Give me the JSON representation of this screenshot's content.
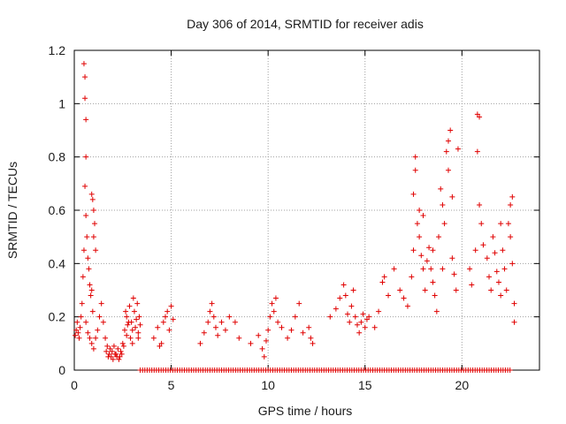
{
  "chart_data": {
    "type": "scatter",
    "title": "Day 306 of 2014, SRMTID for receiver adis",
    "xlabel": "GPS time / hours",
    "ylabel": "SRMTID / TECUs",
    "xlim": [
      0,
      24
    ],
    "ylim": [
      0,
      1.2
    ],
    "x_ticks": [
      0,
      5,
      10,
      15,
      20
    ],
    "x_tick_labels": [
      "0",
      "5",
      "10",
      "15",
      "20"
    ],
    "y_ticks": [
      0,
      0.2,
      0.4,
      0.6,
      0.8,
      1.0,
      1.2
    ],
    "y_tick_labels": [
      "0",
      "0.2",
      "0.4",
      "0.6",
      "0.8",
      "1",
      "1.2"
    ],
    "grid": true,
    "marker": "+",
    "color": "#e00000",
    "series": [
      {
        "name": "SRMTID",
        "points": [
          [
            0.05,
            0.13
          ],
          [
            0.1,
            0.15
          ],
          [
            0.15,
            0.18
          ],
          [
            0.2,
            0.14
          ],
          [
            0.25,
            0.12
          ],
          [
            0.3,
            0.16
          ],
          [
            0.35,
            0.2
          ],
          [
            0.4,
            0.25
          ],
          [
            0.45,
            0.35
          ],
          [
            0.5,
            0.45
          ],
          [
            0.5,
            1.15
          ],
          [
            0.55,
            1.1
          ],
          [
            0.55,
            1.02
          ],
          [
            0.6,
            0.94
          ],
          [
            0.6,
            0.8
          ],
          [
            0.55,
            0.69
          ],
          [
            0.6,
            0.58
          ],
          [
            0.65,
            0.5
          ],
          [
            0.7,
            0.42
          ],
          [
            0.75,
            0.38
          ],
          [
            0.8,
            0.32
          ],
          [
            0.85,
            0.28
          ],
          [
            0.9,
            0.3
          ],
          [
            0.95,
            0.22
          ],
          [
            0.9,
            0.66
          ],
          [
            0.95,
            0.64
          ],
          [
            1.0,
            0.6
          ],
          [
            1.05,
            0.55
          ],
          [
            1.0,
            0.5
          ],
          [
            1.1,
            0.45
          ],
          [
            0.6,
            0.18
          ],
          [
            0.7,
            0.14
          ],
          [
            0.8,
            0.12
          ],
          [
            0.9,
            0.1
          ],
          [
            1.0,
            0.08
          ],
          [
            1.1,
            0.12
          ],
          [
            1.2,
            0.15
          ],
          [
            1.3,
            0.2
          ],
          [
            1.4,
            0.25
          ],
          [
            1.5,
            0.18
          ],
          [
            1.6,
            0.12
          ],
          [
            1.7,
            0.09
          ],
          [
            1.8,
            0.06
          ],
          [
            1.9,
            0.05
          ],
          [
            2.0,
            0.04
          ],
          [
            2.1,
            0.06
          ],
          [
            2.2,
            0.05
          ],
          [
            2.3,
            0.04
          ],
          [
            2.4,
            0.07
          ],
          [
            2.5,
            0.1
          ],
          [
            1.65,
            0.07
          ],
          [
            1.75,
            0.05
          ],
          [
            1.85,
            0.08
          ],
          [
            1.95,
            0.07
          ],
          [
            2.05,
            0.09
          ],
          [
            2.15,
            0.06
          ],
          [
            2.25,
            0.08
          ],
          [
            2.35,
            0.05
          ],
          [
            2.45,
            0.06
          ],
          [
            2.55,
            0.09
          ],
          [
            2.6,
            0.15
          ],
          [
            2.7,
            0.2
          ],
          [
            2.8,
            0.18
          ],
          [
            2.9,
            0.12
          ],
          [
            3.0,
            0.15
          ],
          [
            3.1,
            0.22
          ],
          [
            3.2,
            0.19
          ],
          [
            3.3,
            0.14
          ],
          [
            3.35,
            0.2
          ],
          [
            3.4,
            0.17
          ],
          [
            2.65,
            0.22
          ],
          [
            2.75,
            0.17
          ],
          [
            2.85,
            0.24
          ],
          [
            2.95,
            0.18
          ],
          [
            3.05,
            0.27
          ],
          [
            3.15,
            0.16
          ],
          [
            3.25,
            0.25
          ],
          [
            3.3,
            0.12
          ],
          [
            2.7,
            0.13
          ],
          [
            3.0,
            0.1
          ],
          [
            4.1,
            0.12
          ],
          [
            4.3,
            0.16
          ],
          [
            4.5,
            0.1
          ],
          [
            4.6,
            0.18
          ],
          [
            4.8,
            0.22
          ],
          [
            4.9,
            0.15
          ],
          [
            5.0,
            0.24
          ],
          [
            5.1,
            0.19
          ],
          [
            4.7,
            0.2
          ],
          [
            4.4,
            0.09
          ],
          [
            6.5,
            0.1
          ],
          [
            6.7,
            0.14
          ],
          [
            6.9,
            0.18
          ],
          [
            7.0,
            0.22
          ],
          [
            7.1,
            0.25
          ],
          [
            7.2,
            0.2
          ],
          [
            7.3,
            0.16
          ],
          [
            7.4,
            0.13
          ],
          [
            7.6,
            0.18
          ],
          [
            7.8,
            0.15
          ],
          [
            8.0,
            0.2
          ],
          [
            8.3,
            0.18
          ],
          [
            8.5,
            0.12
          ],
          [
            9.1,
            0.1
          ],
          [
            9.5,
            0.13
          ],
          [
            9.7,
            0.08
          ],
          [
            9.8,
            0.05
          ],
          [
            9.9,
            0.11
          ],
          [
            10.0,
            0.15
          ],
          [
            10.1,
            0.2
          ],
          [
            10.2,
            0.25
          ],
          [
            10.3,
            0.22
          ],
          [
            10.4,
            0.27
          ],
          [
            10.5,
            0.18
          ],
          [
            10.7,
            0.16
          ],
          [
            11.0,
            0.12
          ],
          [
            11.2,
            0.15
          ],
          [
            11.4,
            0.2
          ],
          [
            11.6,
            0.25
          ],
          [
            11.8,
            0.14
          ],
          [
            12.1,
            0.16
          ],
          [
            12.2,
            0.12
          ],
          [
            12.3,
            0.1
          ],
          [
            13.2,
            0.2
          ],
          [
            13.5,
            0.23
          ],
          [
            13.7,
            0.27
          ],
          [
            13.9,
            0.32
          ],
          [
            14.0,
            0.28
          ],
          [
            14.1,
            0.21
          ],
          [
            14.2,
            0.18
          ],
          [
            14.3,
            0.24
          ],
          [
            14.4,
            0.3
          ],
          [
            14.5,
            0.2
          ],
          [
            14.6,
            0.17
          ],
          [
            14.7,
            0.14
          ],
          [
            14.8,
            0.18
          ],
          [
            14.9,
            0.21
          ],
          [
            15.0,
            0.16
          ],
          [
            15.1,
            0.19
          ],
          [
            15.2,
            0.2
          ],
          [
            15.5,
            0.16
          ],
          [
            15.7,
            0.22
          ],
          [
            15.9,
            0.33
          ],
          [
            16.0,
            0.35
          ],
          [
            16.2,
            0.28
          ],
          [
            16.5,
            0.38
          ],
          [
            16.8,
            0.3
          ],
          [
            17.0,
            0.27
          ],
          [
            17.2,
            0.24
          ],
          [
            17.4,
            0.35
          ],
          [
            17.5,
            0.45
          ],
          [
            17.5,
            0.66
          ],
          [
            17.6,
            0.8
          ],
          [
            17.6,
            0.75
          ],
          [
            17.7,
            0.55
          ],
          [
            17.8,
            0.5
          ],
          [
            17.9,
            0.43
          ],
          [
            18.0,
            0.38
          ],
          [
            18.1,
            0.3
          ],
          [
            18.2,
            0.41
          ],
          [
            18.3,
            0.46
          ],
          [
            18.4,
            0.38
          ],
          [
            18.5,
            0.33
          ],
          [
            18.6,
            0.28
          ],
          [
            18.7,
            0.22
          ],
          [
            18.8,
            0.5
          ],
          [
            18.9,
            0.68
          ],
          [
            19.0,
            0.62
          ],
          [
            19.1,
            0.55
          ],
          [
            19.2,
            0.82
          ],
          [
            19.3,
            0.86
          ],
          [
            19.3,
            0.75
          ],
          [
            19.4,
            0.9
          ],
          [
            19.5,
            0.65
          ],
          [
            19.5,
            0.42
          ],
          [
            19.6,
            0.36
          ],
          [
            19.7,
            0.3
          ],
          [
            19.8,
            0.83
          ],
          [
            20.4,
            0.38
          ],
          [
            20.5,
            0.32
          ],
          [
            20.7,
            0.45
          ],
          [
            20.8,
            0.96
          ],
          [
            20.8,
            0.82
          ],
          [
            20.9,
            0.95
          ],
          [
            20.9,
            0.62
          ],
          [
            21.0,
            0.55
          ],
          [
            21.1,
            0.47
          ],
          [
            21.3,
            0.42
          ],
          [
            21.4,
            0.35
          ],
          [
            21.5,
            0.3
          ],
          [
            21.6,
            0.5
          ],
          [
            21.7,
            0.44
          ],
          [
            21.8,
            0.37
          ],
          [
            21.9,
            0.33
          ],
          [
            22.0,
            0.55
          ],
          [
            22.1,
            0.45
          ],
          [
            22.2,
            0.38
          ],
          [
            22.3,
            0.3
          ],
          [
            22.5,
            0.62
          ],
          [
            22.5,
            0.5
          ],
          [
            22.6,
            0.4
          ],
          [
            22.7,
            0.25
          ],
          [
            22.7,
            0.18
          ],
          [
            22.6,
            0.65
          ],
          [
            22.4,
            0.55
          ],
          [
            22.0,
            0.28
          ],
          [
            19.0,
            0.38
          ],
          [
            18.0,
            0.58
          ],
          [
            17.8,
            0.6
          ],
          [
            18.5,
            0.45
          ]
        ]
      }
    ]
  }
}
